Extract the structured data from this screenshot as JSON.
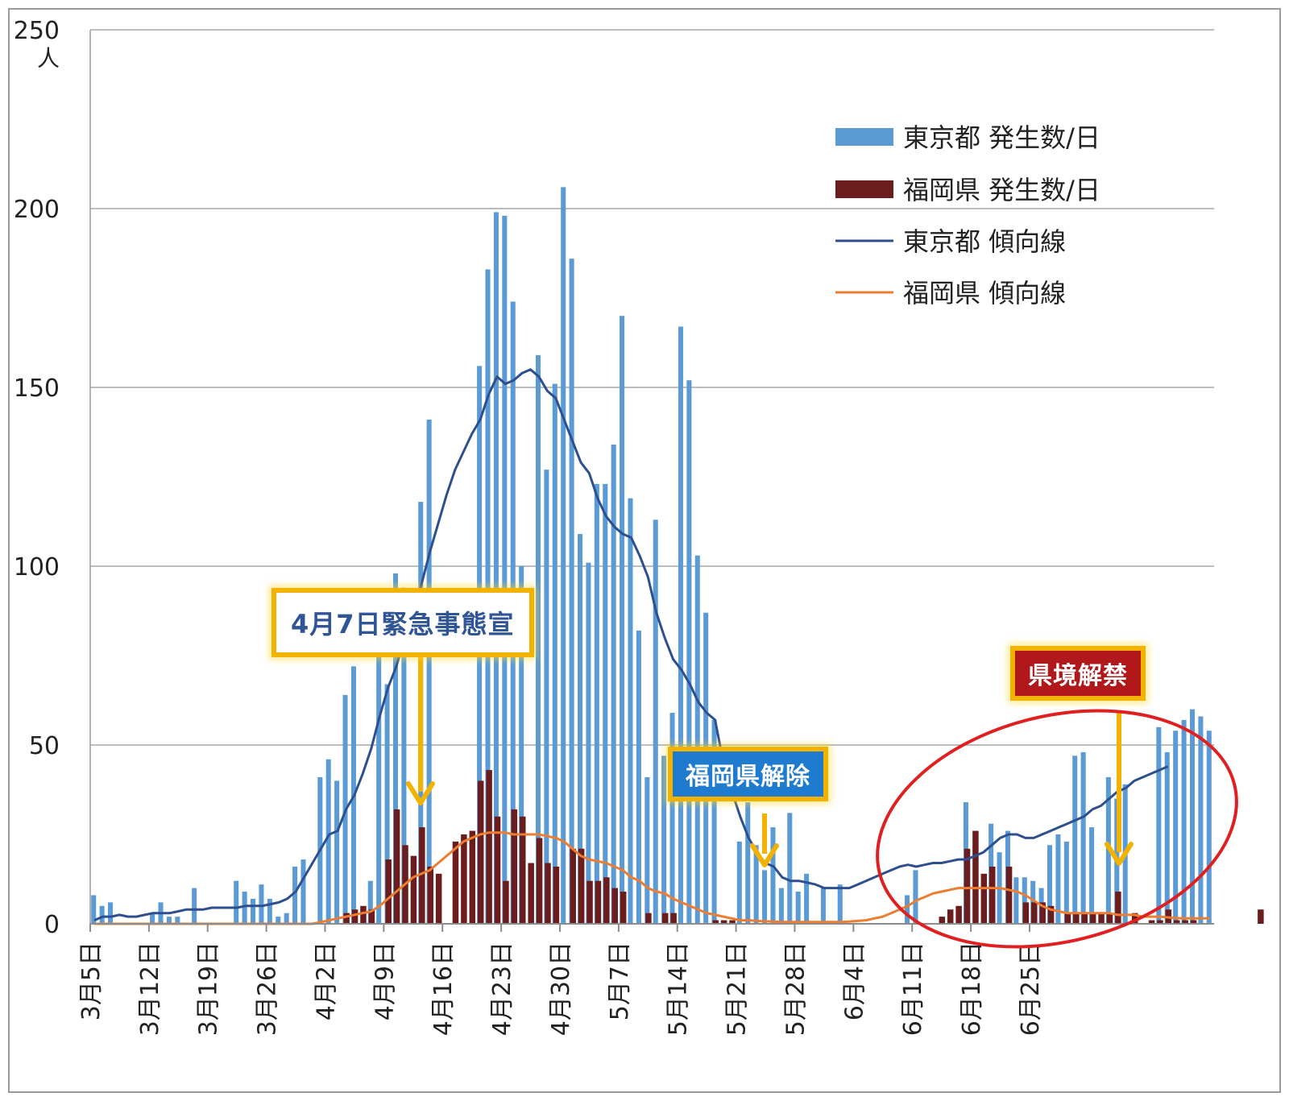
{
  "chart_data": {
    "type": "bar+line",
    "y_unit_label": "人",
    "ylim": [
      0,
      250
    ],
    "y_ticks": [
      "0",
      "50",
      "100",
      "150",
      "200",
      "250"
    ],
    "grid": true,
    "legend_position": "top-right",
    "x_tick_labels": [
      "3月5日",
      "3月12日",
      "3月19日",
      "3月26日",
      "4月2日",
      "4月9日",
      "4月16日",
      "4月23日",
      "4月30日",
      "5月7日",
      "5月14日",
      "5月21日",
      "5月28日",
      "6月4日",
      "6月11日",
      "6月18日",
      "6月25日"
    ],
    "colors": {
      "tokyo_bar": "#5b9bd5",
      "fukuoka_bar": "#6b1d1d",
      "tokyo_line": "#2e4f8f",
      "fukuoka_line": "#ed7d31",
      "annotation_border": "#f3b200",
      "highlight_circle": "#e02020"
    },
    "series": [
      {
        "name": "東京都 発生数/日",
        "type": "bar",
        "values": [
          8,
          5,
          6,
          0,
          0,
          0,
          0,
          3,
          6,
          2,
          2,
          0,
          10,
          0,
          0,
          0,
          0,
          12,
          9,
          7,
          11,
          7,
          2,
          3,
          16,
          18,
          0,
          41,
          46,
          40,
          64,
          72,
          0,
          12,
          78,
          67,
          98,
          94,
          0,
          118,
          141,
          0,
          0,
          0,
          0,
          0,
          156,
          183,
          199,
          198,
          174,
          100,
          0,
          159,
          127,
          151,
          206,
          186,
          109,
          101,
          123,
          123,
          134,
          170,
          119,
          82,
          41,
          113,
          47,
          59,
          167,
          152,
          103,
          87,
          57,
          0,
          0,
          23,
          34,
          22,
          15,
          27,
          10,
          31,
          9,
          14,
          0,
          10,
          0,
          11,
          0,
          0,
          0,
          0,
          0,
          0,
          0,
          8,
          15,
          0,
          0,
          0,
          0,
          0,
          34,
          0,
          0,
          28,
          20,
          26,
          13,
          13,
          12,
          10,
          22,
          25,
          23,
          47,
          48,
          27,
          0,
          41,
          35,
          39,
          0,
          0,
          0,
          55,
          48,
          54,
          57,
          60,
          58,
          54
        ]
      },
      {
        "name": "福岡県 発生数/日",
        "type": "bar",
        "values": [
          0,
          0,
          0,
          0,
          0,
          0,
          0,
          0,
          0,
          0,
          0,
          0,
          0,
          0,
          0,
          0,
          0,
          0,
          0,
          0,
          0,
          0,
          0,
          0,
          0,
          0,
          0,
          0,
          0,
          0,
          3,
          4,
          5,
          4,
          0,
          18,
          32,
          22,
          19,
          27,
          16,
          14,
          0,
          23,
          25,
          26,
          40,
          43,
          30,
          12,
          32,
          30,
          17,
          24,
          17,
          16,
          0,
          21,
          21,
          12,
          12,
          13,
          10,
          9,
          0,
          0,
          3,
          0,
          3,
          3,
          0,
          0,
          0,
          0,
          1,
          1,
          1,
          0,
          0,
          0,
          0,
          0,
          0,
          0,
          0,
          0,
          0,
          0,
          0,
          0,
          0,
          0,
          0,
          0,
          0,
          0,
          0,
          0,
          0,
          0,
          0,
          2,
          4,
          5,
          21,
          26,
          14,
          16,
          0,
          16,
          0,
          6,
          6,
          6,
          5,
          0,
          3,
          3,
          3,
          3,
          3,
          3,
          9,
          0,
          3,
          0,
          1,
          1,
          4,
          1,
          1,
          1,
          0,
          0,
          0,
          0,
          0,
          0,
          0,
          4
        ]
      },
      {
        "name": "東京都 傾向線",
        "type": "line",
        "values": [
          1,
          2,
          2,
          2.5,
          2,
          2,
          2.5,
          3,
          3,
          3,
          3.5,
          4,
          4,
          4,
          4.5,
          4.5,
          4.5,
          4.5,
          5,
          5,
          5,
          5.5,
          6,
          7,
          9,
          13,
          17,
          21,
          25,
          26,
          32,
          36,
          42,
          49,
          58,
          66,
          72,
          80,
          87,
          95,
          104,
          112,
          120,
          127,
          132,
          137,
          141,
          148,
          153,
          151,
          152,
          154,
          155,
          153,
          149,
          147,
          141,
          135,
          129,
          126,
          119,
          114,
          111,
          109,
          108,
          103,
          97,
          87,
          80,
          74,
          71,
          67,
          62,
          59,
          57,
          45,
          37,
          30,
          24,
          20,
          17,
          16,
          13,
          12,
          12,
          11.5,
          11,
          10,
          10,
          10,
          10,
          11,
          12,
          13,
          14,
          15,
          16,
          16.5,
          16,
          16.5,
          17,
          17,
          17.5,
          18,
          18,
          19,
          20,
          22,
          24,
          25,
          25,
          24,
          24,
          25,
          26,
          27,
          28,
          29,
          30,
          32,
          33,
          35,
          37,
          38,
          40,
          41,
          42,
          43,
          44
        ]
      },
      {
        "name": "福岡県 傾向線",
        "type": "line",
        "values": [
          0,
          0,
          0,
          0,
          0,
          0,
          0,
          0,
          0,
          0,
          0,
          0,
          0,
          0,
          0,
          0,
          0,
          0,
          0,
          0,
          0,
          0,
          0,
          0,
          0,
          0,
          0,
          0.5,
          1,
          1.5,
          2,
          2.5,
          3,
          3.5,
          5,
          7,
          9,
          11,
          13,
          14,
          15,
          17,
          19,
          21,
          23,
          24,
          25,
          25.5,
          25.5,
          25.5,
          25,
          25,
          25,
          25,
          24.5,
          24,
          23,
          21,
          19,
          18,
          17.5,
          17,
          16,
          15,
          13,
          12,
          10,
          9,
          8.5,
          7,
          6,
          5,
          4,
          3,
          2.5,
          2,
          1.5,
          1,
          1,
          0.8,
          0.7,
          0.6,
          0.5,
          0.5,
          0.5,
          0.5,
          0.5,
          0.5,
          0.5,
          0.5,
          0.6,
          0.8,
          1,
          1.5,
          2,
          3,
          4,
          5,
          6.5,
          7.5,
          8.5,
          9,
          9.5,
          10,
          10,
          10,
          10,
          10,
          10,
          9.5,
          9,
          8,
          6.5,
          5,
          4,
          3.5,
          3,
          3,
          3,
          3,
          3,
          3,
          2.5,
          2.5,
          2.5,
          2,
          2,
          2,
          1.8,
          1.6,
          1.5,
          1.5,
          1.5,
          1.5
        ]
      }
    ]
  },
  "annotations": {
    "emergency": "4月7日緊急事態宣",
    "fukuoka_lift": "福岡県解除",
    "border_lift": "県境解禁"
  }
}
